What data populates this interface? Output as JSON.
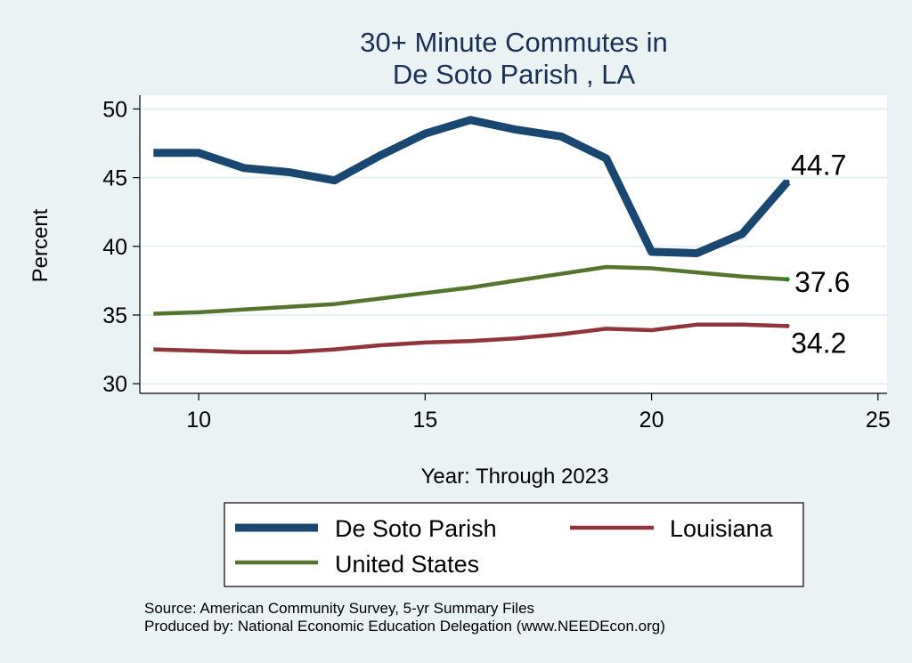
{
  "chart_data": {
    "type": "line",
    "title": [
      "30+ Minute Commutes in",
      "De Soto Parish , LA"
    ],
    "xlabel": "Year: Through 2023",
    "ylabel": "Percent",
    "xlim": [
      8.7,
      25.2
    ],
    "ylim": [
      29.3,
      51.0
    ],
    "xticks": [
      10,
      15,
      20,
      25
    ],
    "yticks": [
      30,
      35,
      40,
      45,
      50
    ],
    "grid": true,
    "legend_position": "bottom",
    "series": [
      {
        "name": "De Soto Parish",
        "color": "#1a476f",
        "x": [
          9,
          10,
          11,
          12,
          13,
          14,
          15,
          16,
          17,
          18,
          19,
          20,
          21,
          22,
          23
        ],
        "values": [
          46.8,
          46.8,
          45.7,
          45.4,
          44.8,
          46.6,
          48.2,
          49.2,
          48.5,
          48.0,
          46.4,
          39.6,
          39.5,
          40.9,
          44.7
        ],
        "end_label": "44.7"
      },
      {
        "name": "Louisiana",
        "color": "#90353b",
        "x": [
          9,
          10,
          11,
          12,
          13,
          14,
          15,
          16,
          17,
          18,
          19,
          20,
          21,
          22,
          23
        ],
        "values": [
          32.5,
          32.4,
          32.3,
          32.3,
          32.5,
          32.8,
          33.0,
          33.1,
          33.3,
          33.6,
          34.0,
          33.9,
          34.3,
          34.3,
          34.2
        ],
        "end_label": "34.2"
      },
      {
        "name": "United States",
        "color": "#55752f",
        "x": [
          9,
          10,
          11,
          12,
          13,
          14,
          15,
          16,
          17,
          18,
          19,
          20,
          21,
          22,
          23
        ],
        "values": [
          35.1,
          35.2,
          35.4,
          35.6,
          35.8,
          36.2,
          36.6,
          37.0,
          37.5,
          38.0,
          38.5,
          38.4,
          38.1,
          37.8,
          37.6
        ],
        "end_label": "37.6"
      }
    ]
  },
  "source": {
    "line1": "Source: American Community Survey, 5-yr Summary Files",
    "line2": "Produced by: National Economic Education Delegation (www.NEEDEcon.org)"
  }
}
